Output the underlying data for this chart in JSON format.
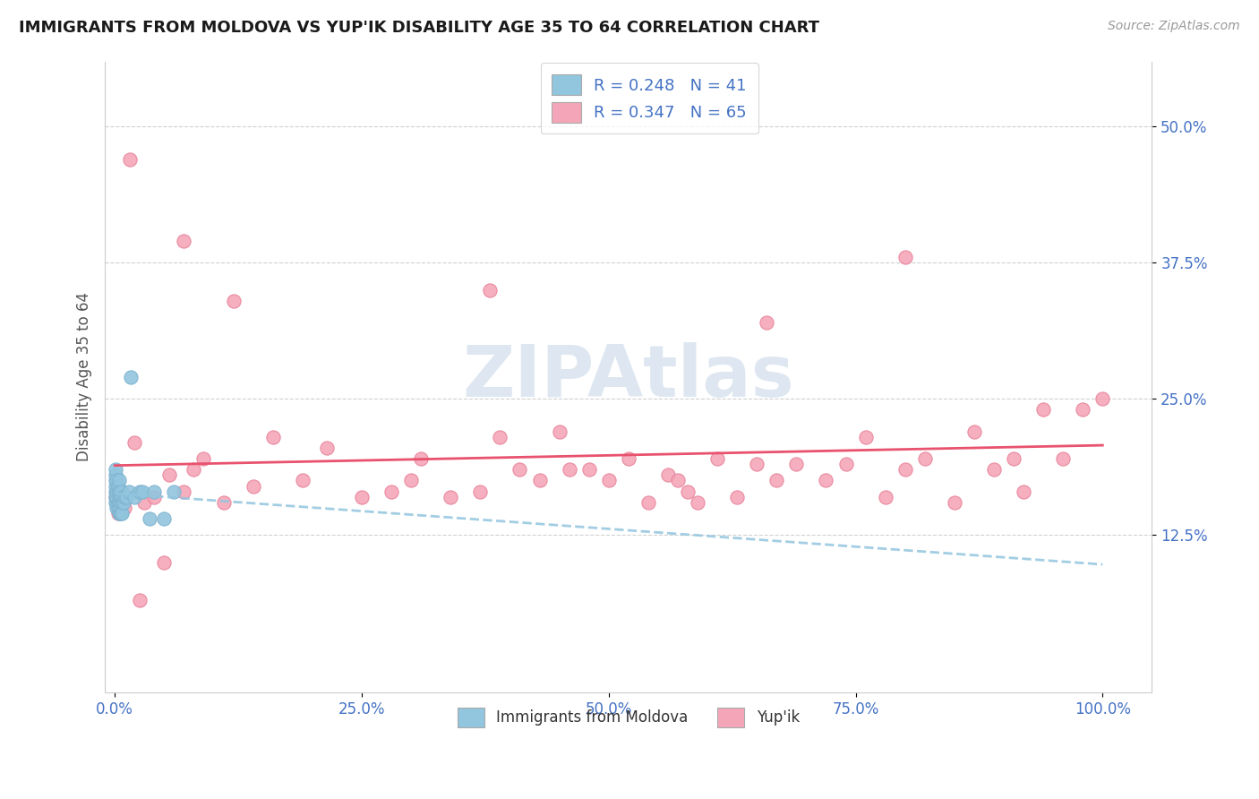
{
  "title": "IMMIGRANTS FROM MOLDOVA VS YUP'IK DISABILITY AGE 35 TO 64 CORRELATION CHART",
  "source_text": "Source: ZipAtlas.com",
  "ylabel": "Disability Age 35 to 64",
  "ytick_vals": [
    0.125,
    0.25,
    0.375,
    0.5
  ],
  "ytick_labels": [
    "12.5%",
    "25.0%",
    "37.5%",
    "50.0%"
  ],
  "xtick_vals": [
    0.0,
    0.25,
    0.5,
    0.75,
    1.0
  ],
  "xtick_labels": [
    "0.0%",
    "25.0%",
    "50.0%",
    "75.0%",
    "100.0%"
  ],
  "xlim": [
    -0.01,
    1.05
  ],
  "ylim": [
    -0.02,
    0.56
  ],
  "blue_color": "#92c5de",
  "pink_color": "#f4a6b8",
  "blue_edge": "#7fb3cf",
  "pink_edge": "#e8849a",
  "trend_blue_color": "#92c5de",
  "trend_pink_color": "#e8526e",
  "watermark_color": "#c8d8e8",
  "tick_color": "#4472c4",
  "legend_r1": "R = 0.248",
  "legend_n1": "N = 41",
  "legend_r2": "R = 0.347",
  "legend_n2": "N = 65",
  "blue_x": [
    0.001,
    0.001,
    0.001,
    0.001,
    0.001,
    0.001,
    0.001,
    0.002,
    0.002,
    0.002,
    0.002,
    0.002,
    0.003,
    0.003,
    0.003,
    0.003,
    0.004,
    0.004,
    0.004,
    0.004,
    0.005,
    0.005,
    0.005,
    0.006,
    0.006,
    0.006,
    0.007,
    0.007,
    0.008,
    0.009,
    0.01,
    0.012,
    0.014,
    0.016,
    0.02,
    0.025,
    0.028,
    0.035,
    0.04,
    0.05,
    0.06
  ],
  "blue_y": [
    0.155,
    0.16,
    0.165,
    0.17,
    0.175,
    0.18,
    0.185,
    0.15,
    0.155,
    0.16,
    0.165,
    0.175,
    0.15,
    0.155,
    0.165,
    0.17,
    0.145,
    0.155,
    0.165,
    0.175,
    0.145,
    0.15,
    0.16,
    0.145,
    0.155,
    0.165,
    0.145,
    0.16,
    0.155,
    0.155,
    0.16,
    0.16,
    0.165,
    0.27,
    0.16,
    0.165,
    0.165,
    0.14,
    0.165,
    0.14,
    0.165
  ],
  "pink_x": [
    0.001,
    0.002,
    0.003,
    0.005,
    0.007,
    0.01,
    0.015,
    0.02,
    0.03,
    0.04,
    0.055,
    0.07,
    0.09,
    0.11,
    0.14,
    0.16,
    0.19,
    0.215,
    0.25,
    0.28,
    0.31,
    0.34,
    0.37,
    0.39,
    0.41,
    0.43,
    0.45,
    0.48,
    0.5,
    0.52,
    0.54,
    0.56,
    0.59,
    0.61,
    0.63,
    0.65,
    0.67,
    0.69,
    0.72,
    0.74,
    0.76,
    0.78,
    0.8,
    0.82,
    0.85,
    0.87,
    0.89,
    0.91,
    0.94,
    0.96,
    0.98,
    1.0,
    0.12,
    0.08,
    0.025,
    0.05,
    0.07,
    0.3,
    0.46,
    0.58,
    0.38,
    0.57,
    0.66,
    0.8,
    0.92
  ],
  "pink_y": [
    0.16,
    0.165,
    0.145,
    0.155,
    0.165,
    0.15,
    0.47,
    0.21,
    0.155,
    0.16,
    0.18,
    0.395,
    0.195,
    0.155,
    0.17,
    0.215,
    0.175,
    0.205,
    0.16,
    0.165,
    0.195,
    0.16,
    0.165,
    0.215,
    0.185,
    0.175,
    0.22,
    0.185,
    0.175,
    0.195,
    0.155,
    0.18,
    0.155,
    0.195,
    0.16,
    0.19,
    0.175,
    0.19,
    0.175,
    0.19,
    0.215,
    0.16,
    0.185,
    0.195,
    0.155,
    0.22,
    0.185,
    0.195,
    0.24,
    0.195,
    0.24,
    0.25,
    0.34,
    0.185,
    0.065,
    0.1,
    0.165,
    0.175,
    0.185,
    0.165,
    0.35,
    0.175,
    0.32,
    0.38,
    0.165
  ]
}
